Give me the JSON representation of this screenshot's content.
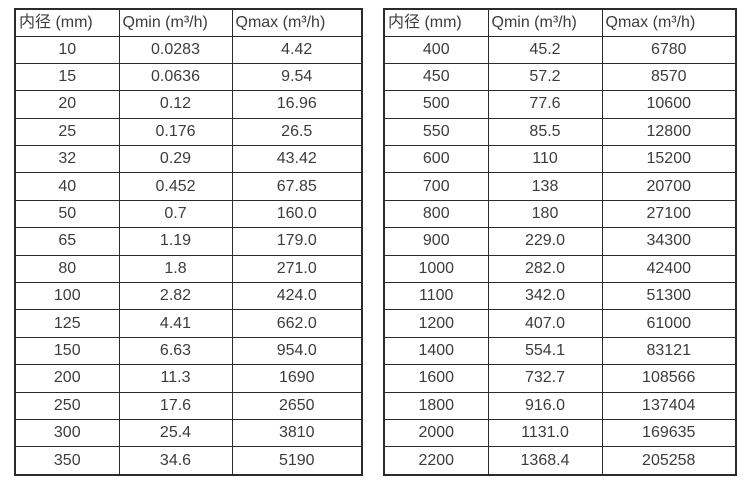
{
  "page": {
    "background": "#ffffff",
    "text_color": "#3c3c3c",
    "border_color": "#2b2b2b"
  },
  "tables": [
    {
      "name": "flow-table-left",
      "headers": [
        "内径 (mm)",
        "Qmin (m³/h)",
        "Qmax (m³/h)"
      ],
      "rows": [
        [
          "10",
          "0.0283",
          "4.42"
        ],
        [
          "15",
          "0.0636",
          "9.54"
        ],
        [
          "20",
          "0.12",
          "16.96"
        ],
        [
          "25",
          "0.176",
          "26.5"
        ],
        [
          "32",
          "0.29",
          "43.42"
        ],
        [
          "40",
          "0.452",
          "67.85"
        ],
        [
          "50",
          "0.7",
          "160.0"
        ],
        [
          "65",
          "1.19",
          "179.0"
        ],
        [
          "80",
          "1.8",
          "271.0"
        ],
        [
          "100",
          "2.82",
          "424.0"
        ],
        [
          "125",
          "4.41",
          "662.0"
        ],
        [
          "150",
          "6.63",
          "954.0"
        ],
        [
          "200",
          "11.3",
          "1690"
        ],
        [
          "250",
          "17.6",
          "2650"
        ],
        [
          "300",
          "25.4",
          "3810"
        ],
        [
          "350",
          "34.6",
          "5190"
        ]
      ]
    },
    {
      "name": "flow-table-right",
      "headers": [
        "内径 (mm)",
        "Qmin (m³/h)",
        "Qmax (m³/h)"
      ],
      "rows": [
        [
          "400",
          "45.2",
          "6780"
        ],
        [
          "450",
          "57.2",
          "8570"
        ],
        [
          "500",
          "77.6",
          "10600"
        ],
        [
          "550",
          "85.5",
          "12800"
        ],
        [
          "600",
          "110",
          "15200"
        ],
        [
          "700",
          "138",
          "20700"
        ],
        [
          "800",
          "180",
          "27100"
        ],
        [
          "900",
          "229.0",
          "34300"
        ],
        [
          "1000",
          "282.0",
          "42400"
        ],
        [
          "1100",
          "342.0",
          "51300"
        ],
        [
          "1200",
          "407.0",
          "61000"
        ],
        [
          "1400",
          "554.1",
          "83121"
        ],
        [
          "1600",
          "732.7",
          "108566"
        ],
        [
          "1800",
          "916.0",
          "137404"
        ],
        [
          "2000",
          "1131.0",
          "169635"
        ],
        [
          "2200",
          "1368.4",
          "205258"
        ]
      ]
    }
  ]
}
